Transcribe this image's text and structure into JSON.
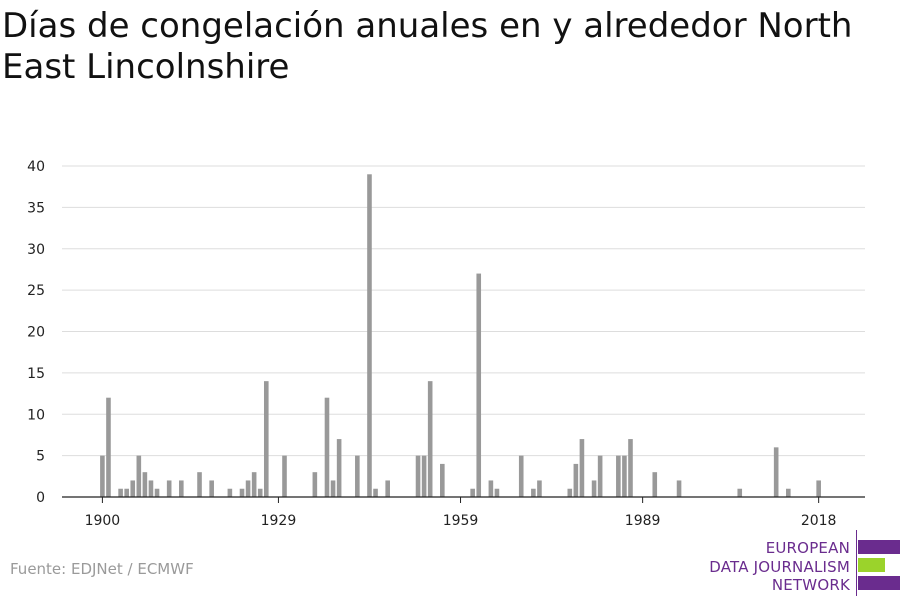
{
  "title": "Días de congelación anuales en y alrededor North East Lincolnshire",
  "source": "Fuente: EDJNet / ECMWF",
  "logo": {
    "line1": "EUROPEAN",
    "line2": "DATA JOURNALISM",
    "line3": "NETWORK",
    "colors": {
      "text": "#6a2c8e",
      "purple": "#6a2c8e",
      "green": "#9bd32b"
    }
  },
  "colors": {
    "bar": "#999999",
    "grid": "#dddddd",
    "axis": "#222222"
  },
  "chart_data": {
    "type": "bar",
    "title": "Días de congelación anuales en y alrededor North East Lincolnshire",
    "xlabel": "",
    "ylabel": "",
    "xlim": [
      1900,
      2021
    ],
    "ylim": [
      0,
      40
    ],
    "yticks": [
      0,
      5,
      10,
      15,
      20,
      25,
      30,
      35,
      40
    ],
    "xticks": [
      1900,
      1929,
      1959,
      1989,
      2018
    ],
    "grid": true,
    "legend": "none",
    "x": [
      1900,
      1901,
      1902,
      1903,
      1904,
      1905,
      1906,
      1907,
      1908,
      1909,
      1910,
      1911,
      1912,
      1913,
      1914,
      1915,
      1916,
      1917,
      1918,
      1919,
      1920,
      1921,
      1922,
      1923,
      1924,
      1925,
      1926,
      1927,
      1928,
      1929,
      1930,
      1931,
      1932,
      1933,
      1934,
      1935,
      1936,
      1937,
      1938,
      1939,
      1940,
      1941,
      1942,
      1943,
      1944,
      1945,
      1946,
      1947,
      1948,
      1949,
      1950,
      1951,
      1952,
      1953,
      1954,
      1955,
      1956,
      1957,
      1958,
      1959,
      1960,
      1961,
      1962,
      1963,
      1964,
      1965,
      1966,
      1967,
      1968,
      1969,
      1970,
      1971,
      1972,
      1973,
      1974,
      1975,
      1976,
      1977,
      1978,
      1979,
      1980,
      1981,
      1982,
      1983,
      1984,
      1985,
      1986,
      1987,
      1988,
      1989,
      1990,
      1991,
      1992,
      1993,
      1994,
      1995,
      1996,
      1997,
      1998,
      1999,
      2000,
      2001,
      2002,
      2003,
      2004,
      2005,
      2006,
      2007,
      2008,
      2009,
      2010,
      2011,
      2012,
      2013,
      2014,
      2015,
      2016,
      2017,
      2018,
      2019,
      2020
    ],
    "values": [
      5,
      12,
      0,
      1,
      1,
      2,
      5,
      3,
      2,
      1,
      0,
      2,
      0,
      2,
      0,
      0,
      3,
      0,
      2,
      0,
      0,
      1,
      0,
      1,
      2,
      3,
      1,
      14,
      0,
      0,
      5,
      0,
      0,
      0,
      0,
      3,
      0,
      12,
      2,
      7,
      0,
      0,
      5,
      0,
      39,
      1,
      0,
      2,
      0,
      0,
      0,
      0,
      5,
      5,
      14,
      0,
      4,
      0,
      0,
      0,
      0,
      1,
      27,
      0,
      2,
      1,
      0,
      0,
      0,
      5,
      0,
      1,
      2,
      0,
      0,
      0,
      0,
      1,
      4,
      7,
      0,
      2,
      5,
      0,
      0,
      5,
      5,
      7,
      0,
      0,
      0,
      3,
      0,
      0,
      0,
      2,
      0,
      0,
      0,
      0,
      0,
      0,
      0,
      0,
      0,
      1,
      0,
      0,
      0,
      0,
      0,
      6,
      0,
      1,
      0,
      0,
      0,
      0,
      2,
      0,
      0
    ]
  }
}
